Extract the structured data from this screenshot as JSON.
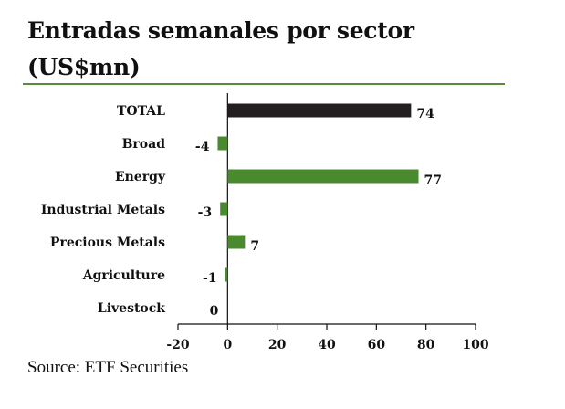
{
  "chart_data": {
    "type": "bar",
    "orientation": "horizontal",
    "title": "Entradas semanales por sector (US$mn)",
    "categories": [
      "TOTAL",
      "Broad",
      "Energy",
      "Industrial Metals",
      "Precious Metals",
      "Agriculture",
      "Livestock"
    ],
    "values": [
      74,
      -4,
      77,
      -3,
      7,
      -1,
      0
    ],
    "data_labels": [
      "74",
      "-4",
      "77",
      "-3",
      "7",
      "-1",
      "0"
    ],
    "xlim": [
      -20,
      100
    ],
    "xticks": [
      -20,
      0,
      20,
      40,
      60,
      80,
      100
    ],
    "grid": false,
    "xlabel": "",
    "ylabel": "",
    "colors": {
      "total": "#231f20",
      "sector": "#4a8a2e",
      "rule": "#5b8c3e"
    }
  },
  "source": "Source: ETF Securities"
}
